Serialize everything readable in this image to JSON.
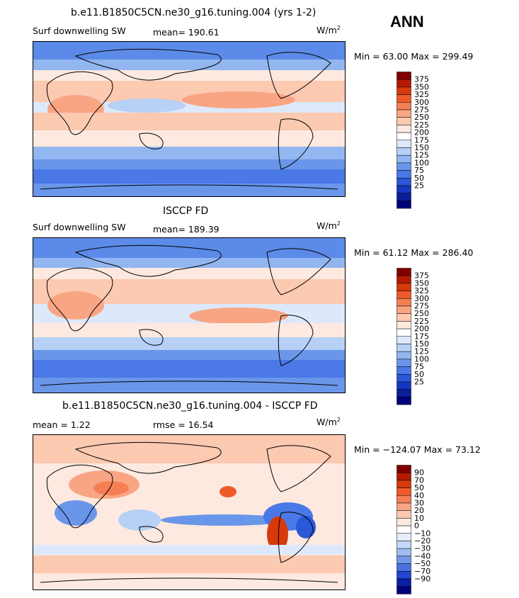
{
  "season_label": "ANN",
  "panels": [
    {
      "title": "b.e11.B1850C5CN.ne30_g16.tuning.004 (yrs 1-2)",
      "variable": "Surf downwelling SW",
      "stat_left": "mean=  190.61",
      "stat_right": "",
      "units_base": "W/m",
      "units_exp": "2",
      "minmax": "Min =  63.00 Max = 299.49",
      "colorbar": {
        "labels": [
          "375",
          "350",
          "325",
          "300",
          "275",
          "250",
          "225",
          "200",
          "175",
          "150",
          "125",
          "100",
          "75",
          "50",
          "25"
        ],
        "colors": [
          "#800000",
          "#b31a00",
          "#d63a0a",
          "#ef5a2a",
          "#f57f55",
          "#f9a583",
          "#fcc9b1",
          "#fde9df",
          "#ffffff",
          "#dde9fb",
          "#b7d0f6",
          "#92b6f0",
          "#6a96ea",
          "#4a78e6",
          "#2a58d8",
          "#1436c0",
          "#0a1e9a",
          "#00007a"
        ]
      },
      "chart_data": {
        "type": "heatmap",
        "title": "Surf downwelling SW",
        "units": "W/m2",
        "mean": 190.61,
        "min": 63.0,
        "max": 299.49,
        "contour_levels": [
          25,
          50,
          75,
          100,
          125,
          150,
          175,
          200,
          225,
          250,
          275,
          300,
          325,
          350,
          375
        ]
      }
    },
    {
      "title": "ISCCP FD",
      "variable": "Surf downwelling SW",
      "stat_left": "mean=  189.39",
      "stat_right": "",
      "units_base": "W/m",
      "units_exp": "2",
      "minmax": "Min =  61.12 Max = 286.40",
      "colorbar": {
        "labels": [
          "375",
          "350",
          "325",
          "300",
          "275",
          "250",
          "225",
          "200",
          "175",
          "150",
          "125",
          "100",
          "75",
          "50",
          "25"
        ],
        "colors": [
          "#800000",
          "#b31a00",
          "#d63a0a",
          "#ef5a2a",
          "#f57f55",
          "#f9a583",
          "#fcc9b1",
          "#fde9df",
          "#ffffff",
          "#dde9fb",
          "#b7d0f6",
          "#92b6f0",
          "#6a96ea",
          "#4a78e6",
          "#2a58d8",
          "#1436c0",
          "#0a1e9a",
          "#00007a"
        ]
      },
      "chart_data": {
        "type": "heatmap",
        "title": "Surf downwelling SW",
        "units": "W/m2",
        "mean": 189.39,
        "min": 61.12,
        "max": 286.4,
        "contour_levels": [
          25,
          50,
          75,
          100,
          125,
          150,
          175,
          200,
          225,
          250,
          275,
          300,
          325,
          350,
          375
        ]
      }
    },
    {
      "title": "b.e11.B1850C5CN.ne30_g16.tuning.004 - ISCCP FD",
      "variable": "",
      "stat_left": "mean =   1.22",
      "stat_right": "rmse =  16.54",
      "units_base": "W/m",
      "units_exp": "2",
      "minmax": "Min = −124.07 Max =  73.12",
      "colorbar": {
        "labels": [
          "90",
          "70",
          "50",
          "40",
          "30",
          "20",
          "10",
          "0",
          "−10",
          "−20",
          "−30",
          "−40",
          "−50",
          "−70",
          "−90"
        ],
        "colors": [
          "#800000",
          "#b31a00",
          "#d63a0a",
          "#ef5a2a",
          "#f57f55",
          "#f9a583",
          "#fcc9b1",
          "#fde9df",
          "#ffffff",
          "#e6eefc",
          "#c3d7f8",
          "#9cbcf2",
          "#7398eb",
          "#4a70e2",
          "#2246d2",
          "#0a20a8",
          "#00007a"
        ]
      },
      "chart_data": {
        "type": "heatmap",
        "title": "b.e11.B1850C5CN.ne30_g16.tuning.004 - ISCCP FD",
        "units": "W/m2",
        "mean": 1.22,
        "rmse": 16.54,
        "min": -124.07,
        "max": 73.12,
        "contour_levels": [
          -90,
          -70,
          -50,
          -40,
          -30,
          -20,
          -10,
          0,
          10,
          20,
          30,
          40,
          50,
          70,
          90
        ]
      }
    }
  ]
}
